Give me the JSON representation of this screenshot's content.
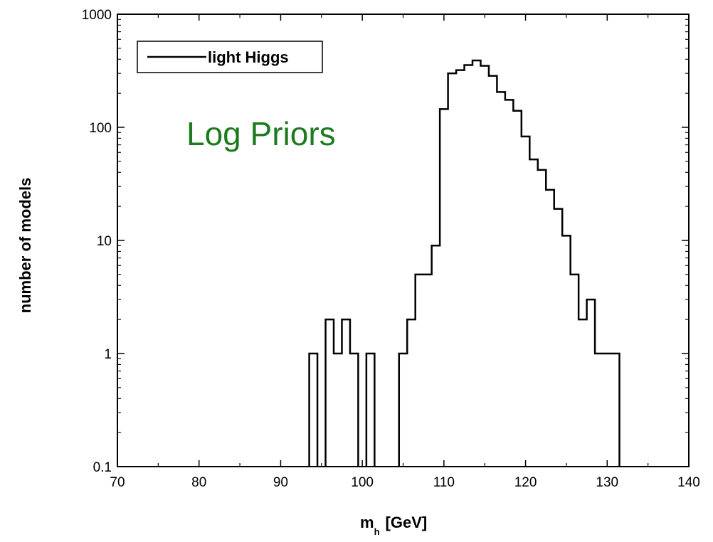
{
  "chart_data": {
    "type": "histogram",
    "title": "",
    "xlabel_main": "m",
    "xlabel_sub": "h",
    "xlabel_unit": "[GeV]",
    "ylabel": "number of models",
    "xlim": [
      70,
      140
    ],
    "ylim": [
      0.1,
      1000
    ],
    "yscale": "log",
    "x_ticks": [
      "70",
      "80",
      "90",
      "100",
      "110",
      "120",
      "130",
      "140"
    ],
    "y_ticks": [
      "0.1",
      "1",
      "10",
      "100",
      "1000"
    ],
    "grid": false,
    "legend": {
      "position": "top-left",
      "entries": [
        "light Higgs"
      ]
    },
    "annotation": {
      "text": "Log Priors",
      "color": "#1e7a1e"
    },
    "bin_width": 1,
    "series": [
      {
        "name": "light Higgs",
        "bins": [
          {
            "x0": 93.5,
            "x1": 94.5,
            "y": 1
          },
          {
            "x0": 94.5,
            "x1": 95.5,
            "y": 0
          },
          {
            "x0": 95.5,
            "x1": 96.5,
            "y": 2
          },
          {
            "x0": 96.5,
            "x1": 97.5,
            "y": 1
          },
          {
            "x0": 97.5,
            "x1": 98.5,
            "y": 2
          },
          {
            "x0": 98.5,
            "x1": 99.5,
            "y": 1
          },
          {
            "x0": 99.5,
            "x1": 100.5,
            "y": 0
          },
          {
            "x0": 100.5,
            "x1": 101.5,
            "y": 1
          },
          {
            "x0": 101.5,
            "x1": 104.5,
            "y": 0
          },
          {
            "x0": 104.5,
            "x1": 105.5,
            "y": 1
          },
          {
            "x0": 105.5,
            "x1": 106.5,
            "y": 2
          },
          {
            "x0": 106.5,
            "x1": 108.5,
            "y": 5
          },
          {
            "x0": 108.5,
            "x1": 109.5,
            "y": 9
          },
          {
            "x0": 109.5,
            "x1": 110.5,
            "y": 145
          },
          {
            "x0": 110.5,
            "x1": 111.5,
            "y": 300
          },
          {
            "x0": 111.5,
            "x1": 112.5,
            "y": 320
          },
          {
            "x0": 112.5,
            "x1": 113.5,
            "y": 355
          },
          {
            "x0": 113.5,
            "x1": 114.5,
            "y": 390
          },
          {
            "x0": 114.5,
            "x1": 115.5,
            "y": 350
          },
          {
            "x0": 115.5,
            "x1": 116.5,
            "y": 285
          },
          {
            "x0": 116.5,
            "x1": 117.5,
            "y": 205
          },
          {
            "x0": 117.5,
            "x1": 118.5,
            "y": 175
          },
          {
            "x0": 118.5,
            "x1": 119.5,
            "y": 140
          },
          {
            "x0": 119.5,
            "x1": 120.5,
            "y": 83
          },
          {
            "x0": 120.5,
            "x1": 121.5,
            "y": 52
          },
          {
            "x0": 121.5,
            "x1": 122.5,
            "y": 42
          },
          {
            "x0": 122.5,
            "x1": 123.5,
            "y": 28
          },
          {
            "x0": 123.5,
            "x1": 124.5,
            "y": 19
          },
          {
            "x0": 124.5,
            "x1": 125.5,
            "y": 11
          },
          {
            "x0": 125.5,
            "x1": 126.5,
            "y": 5
          },
          {
            "x0": 126.5,
            "x1": 127.5,
            "y": 2
          },
          {
            "x0": 127.5,
            "x1": 128.5,
            "y": 3
          },
          {
            "x0": 128.5,
            "x1": 131.5,
            "y": 1
          }
        ]
      }
    ]
  }
}
